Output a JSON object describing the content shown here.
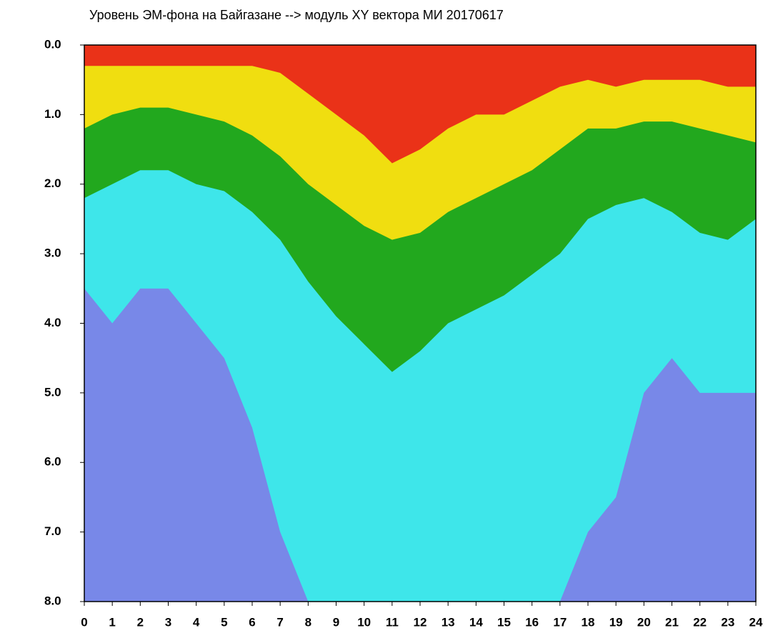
{
  "chart_data": {
    "type": "area",
    "title": "Уровень ЭМ-фона на Байгазане  -->  модуль XY вектора МИ  20170617",
    "x": [
      0,
      1,
      2,
      3,
      4,
      5,
      6,
      7,
      8,
      9,
      10,
      11,
      12,
      13,
      14,
      15,
      16,
      17,
      18,
      19,
      20,
      21,
      22,
      23,
      24
    ],
    "xlim": [
      0,
      24
    ],
    "xticks": [
      0,
      1,
      2,
      3,
      4,
      5,
      6,
      7,
      8,
      9,
      10,
      11,
      12,
      13,
      14,
      15,
      16,
      17,
      18,
      19,
      20,
      21,
      22,
      23,
      24
    ],
    "ylim": [
      0,
      8
    ],
    "y_inverted": true,
    "yticks": [
      {
        "value": 0,
        "label": "0.0"
      },
      {
        "value": 1,
        "label": "1.0"
      },
      {
        "value": 2,
        "label": "2.0"
      },
      {
        "value": 3,
        "label": "3.0"
      },
      {
        "value": 4,
        "label": "4.0"
      },
      {
        "value": 5,
        "label": "5.0"
      },
      {
        "value": 6,
        "label": "6.0"
      },
      {
        "value": 7,
        "label": "7.0"
      },
      {
        "value": 8,
        "label": "8.0"
      }
    ],
    "fill_color": "#7888e8",
    "series": [
      {
        "color": "#3ee6ea",
        "values": [
          3.5,
          4.0,
          3.5,
          3.5,
          4.0,
          4.5,
          5.5,
          7.0,
          8,
          8,
          8,
          8,
          8,
          8,
          8,
          8,
          8,
          8,
          7.0,
          6.5,
          5.0,
          4.5,
          5.0,
          5.0,
          5.0
        ]
      },
      {
        "color": "#22a81e",
        "values": [
          2.2,
          2.0,
          1.8,
          1.8,
          2.0,
          2.1,
          2.4,
          2.8,
          3.4,
          3.9,
          4.3,
          4.7,
          4.4,
          4.0,
          3.8,
          3.6,
          3.3,
          3.0,
          2.5,
          2.3,
          2.2,
          2.4,
          2.7,
          2.8,
          2.5
        ]
      },
      {
        "color": "#f0de10",
        "values": [
          1.2,
          1.0,
          0.9,
          0.9,
          1.0,
          1.1,
          1.3,
          1.6,
          2.0,
          2.3,
          2.6,
          2.8,
          2.7,
          2.4,
          2.2,
          2.0,
          1.8,
          1.5,
          1.2,
          1.2,
          1.1,
          1.1,
          1.2,
          1.3,
          1.4
        ]
      },
      {
        "color": "#ea3218",
        "values": [
          0.3,
          0.3,
          0.3,
          0.3,
          0.3,
          0.3,
          0.3,
          0.4,
          0.7,
          1.0,
          1.3,
          1.7,
          1.5,
          1.2,
          1.0,
          1.0,
          0.8,
          0.6,
          0.5,
          0.6,
          0.5,
          0.5,
          0.5,
          0.6,
          0.6
        ]
      }
    ]
  }
}
